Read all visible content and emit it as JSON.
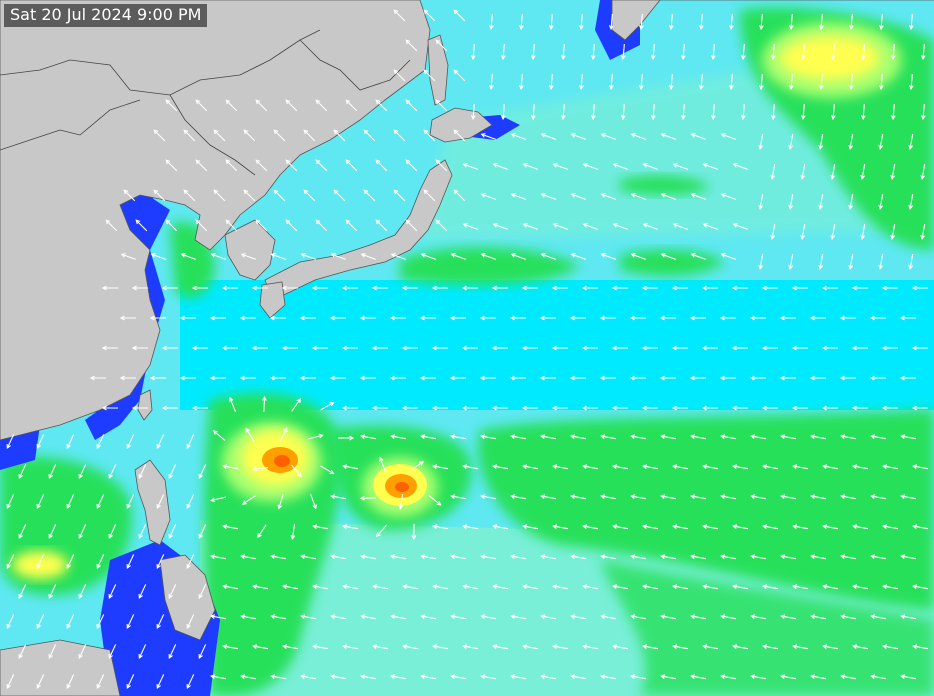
{
  "map": {
    "timestamp": "Sat 20 Jul 2024 9:00 PM",
    "colors": {
      "land": "#c8c8c8",
      "border": "#555555",
      "coast_deep": "#1e3cff",
      "calm": "#00e6ff",
      "light": "#7ff0d0",
      "moderate": "#28e05a",
      "strong": "#8cff64",
      "high": "#ffff50",
      "very_high": "#ffa000",
      "extreme": "#ff5000",
      "arrows": "#ffffff"
    },
    "icons": [
      "wind-arrow-icon"
    ]
  }
}
